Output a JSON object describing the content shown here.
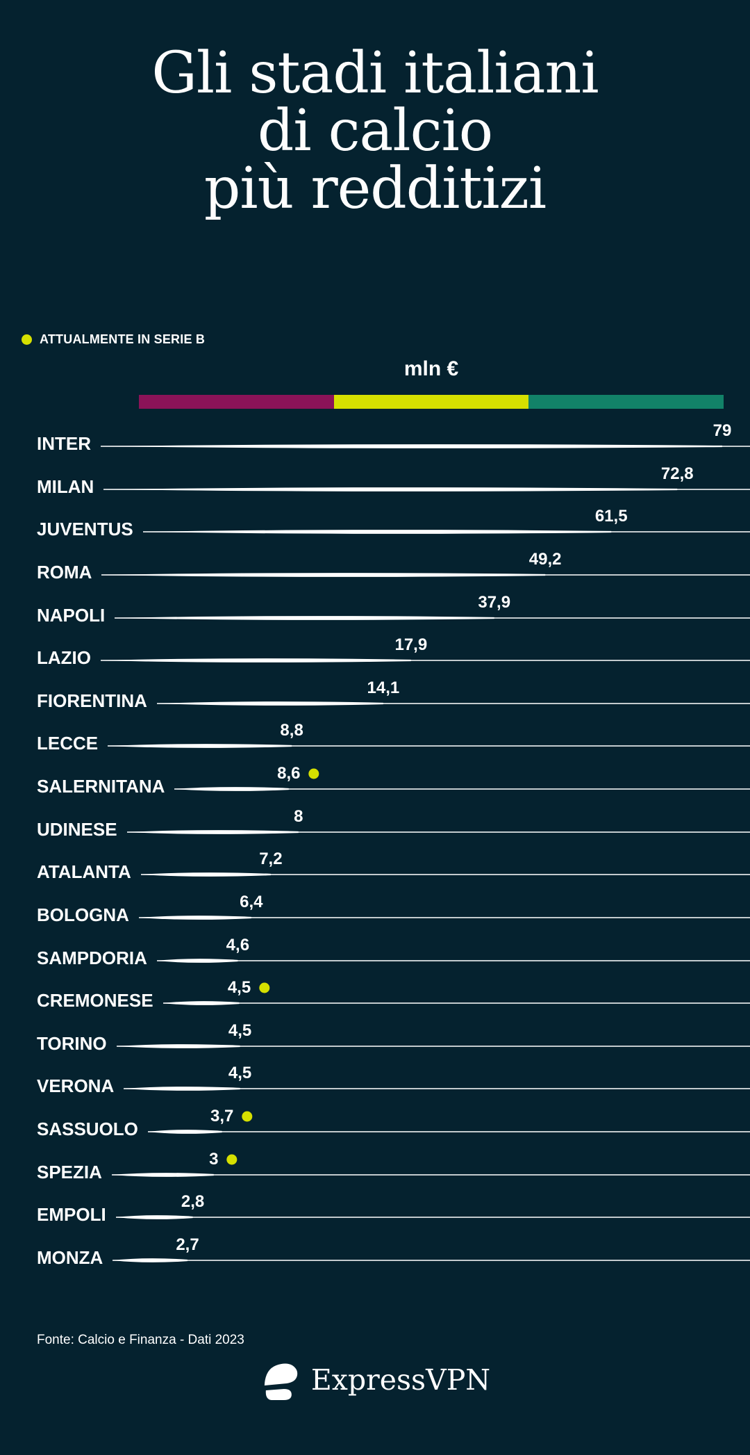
{
  "page": {
    "background": "#05222F",
    "text_color": "#FFFFFF"
  },
  "title": {
    "lines": [
      "Gli stadi italiani",
      "di calcio",
      "più redditizi"
    ]
  },
  "legend": {
    "label": "ATTUALMENTE IN SERIE B",
    "dot_color": "#D6E000"
  },
  "chart_data": {
    "type": "bar",
    "orientation": "horizontal",
    "title": "Gli stadi italiani di calcio più redditizi",
    "unit_label": "mln €",
    "legend_entry": "ATTUALMENTE IN SERIE B",
    "xlim": [
      0,
      79
    ],
    "grid": false,
    "categories": [
      "INTER",
      "MILAN",
      "JUVENTUS",
      "ROMA",
      "NAPOLI",
      "LAZIO",
      "FIORENTINA",
      "LECCE",
      "SALERNITANA",
      "UDINESE",
      "ATALANTA",
      "BOLOGNA",
      "SAMPDORIA",
      "CREMONESE",
      "TORINO",
      "VERONA",
      "SASSUOLO",
      "SPEZIA",
      "EMPOLI",
      "MONZA"
    ],
    "values": [
      79,
      72.8,
      61.5,
      49.2,
      37.9,
      17.9,
      14.1,
      8.8,
      8.6,
      8,
      7.2,
      6.4,
      4.6,
      4.5,
      4.5,
      4.5,
      3.7,
      3,
      2.8,
      2.7
    ],
    "value_labels": [
      "79",
      "72,8",
      "61,5",
      "49,2",
      "37,9",
      "17,9",
      "14,1",
      "8,8",
      "8,6",
      "8",
      "7,2",
      "6,4",
      "4,6",
      "4,5",
      "4,5",
      "4,5",
      "3,7",
      "3",
      "2,8",
      "2,7"
    ],
    "serie_b_flags": [
      false,
      false,
      false,
      false,
      false,
      false,
      false,
      false,
      true,
      false,
      false,
      false,
      false,
      true,
      false,
      false,
      true,
      true,
      false,
      false
    ],
    "label_x_pct": [
      96.3,
      90.3,
      81.5,
      72.7,
      65.9,
      54.8,
      51.1,
      38.9,
      38.5,
      39.8,
      36.1,
      33.5,
      31.7,
      31.9,
      32.0,
      32.0,
      29.6,
      28.5,
      25.7,
      25.0
    ],
    "scale_bar_colors": [
      "#8B1358",
      "#D6E000",
      "#128268"
    ],
    "serie_b_dot_color": "#D6E000",
    "line_color": "#FFFFFF"
  },
  "footer": {
    "source": "Fonte: Calcio e Finanza - Dati 2023"
  },
  "brand": {
    "name": "ExpressVPN"
  }
}
